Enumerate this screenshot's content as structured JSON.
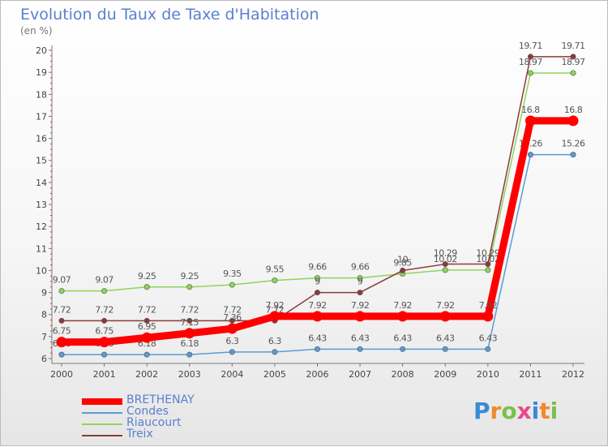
{
  "title": "Evolution du Taux de Taxe d'Habitation",
  "subtitle": "(en %)",
  "logo_text": "Proxiti",
  "logo_colors": [
    "#3a8ad6",
    "#f08a2a",
    "#7cc04a",
    "#e84a8a",
    "#3a8ad6",
    "#f08a2a",
    "#7cc04a"
  ],
  "chart_data": {
    "type": "line",
    "title": "Evolution du Taux de Taxe d'Habitation",
    "ylabel": "(en %)",
    "xlabel": "",
    "categories": [
      "2000",
      "2001",
      "2002",
      "2003",
      "2004",
      "2005",
      "2006",
      "2007",
      "2008",
      "2009",
      "2010",
      "2011",
      "2012"
    ],
    "ylim": [
      6,
      20
    ],
    "yticks": [
      "6",
      "7",
      "8",
      "9",
      "10",
      "11",
      "12",
      "13",
      "14",
      "15",
      "16",
      "17",
      "18",
      "19",
      "20"
    ],
    "grid": false,
    "legend_position": "bottom-left",
    "series": [
      {
        "name": "Condes",
        "color": "#5b9bd5",
        "values": [
          6.18,
          6.18,
          6.18,
          6.18,
          6.3,
          6.3,
          6.43,
          6.43,
          6.43,
          6.43,
          6.43,
          15.26,
          15.26
        ],
        "labels": [
          "6.18",
          "6.18",
          "6.18",
          "6.18",
          "6.3",
          "6.3",
          "6.43",
          "6.43",
          "6.43",
          "6.43",
          "6.43",
          "15.26",
          "15.26"
        ]
      },
      {
        "name": "Riaucourt",
        "color": "#8fd45a",
        "values": [
          9.07,
          9.07,
          9.25,
          9.25,
          9.35,
          9.55,
          9.66,
          9.66,
          9.85,
          10.02,
          10.02,
          18.97,
          18.97
        ],
        "labels": [
          "9.07",
          "9.07",
          "9.25",
          "9.25",
          "9.35",
          "9.55",
          "9.66",
          "9.66",
          "9.85",
          "10.02",
          "10.02",
          "18.97",
          "18.97"
        ]
      },
      {
        "name": "Treix",
        "color": "#8b3a3a",
        "values": [
          7.72,
          7.72,
          7.72,
          7.72,
          7.72,
          7.72,
          9,
          9,
          10,
          10.29,
          10.29,
          19.71,
          19.71
        ],
        "labels": [
          "7.72",
          "7.72",
          "7.72",
          "7.72",
          "7.72",
          "7.72",
          "9",
          "9",
          "10",
          "10.29",
          "10.29",
          "19.71",
          "19.71"
        ]
      },
      {
        "name": "BRETHENAY",
        "color": "#ff0000",
        "values": [
          6.75,
          6.75,
          6.95,
          7.15,
          7.36,
          7.92,
          7.92,
          7.92,
          7.92,
          7.92,
          7.92,
          16.8,
          16.8
        ],
        "labels": [
          "6.75",
          "6.75",
          "6.95",
          "7.15",
          "7.36",
          "7.92",
          "7.92",
          "7.92",
          "7.92",
          "7.92",
          "7.92",
          "16.8",
          "16.8"
        ]
      }
    ]
  },
  "legend": [
    {
      "label": "BRETHENAY",
      "color": "#ff0000",
      "thick": true
    },
    {
      "label": "Condes",
      "color": "#5b9bd5",
      "thick": false
    },
    {
      "label": "Riaucourt",
      "color": "#8fd45a",
      "thick": false
    },
    {
      "label": "Treix",
      "color": "#8b3a3a",
      "thick": false
    }
  ]
}
